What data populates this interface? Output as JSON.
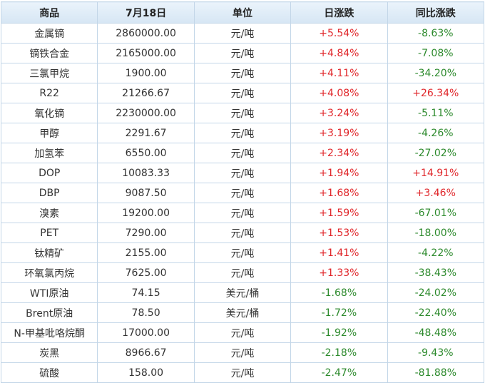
{
  "table": {
    "header": [
      "商品",
      "7月18日",
      "单位",
      "日涨跌",
      "同比涨跌"
    ],
    "rows": [
      [
        "金属镝",
        "2860000.00",
        "元/吨",
        "+5.54%",
        "-8.63%"
      ],
      [
        "镝铁合金",
        "2165000.00",
        "元/吨",
        "+4.84%",
        "-7.08%"
      ],
      [
        "三氯甲烷",
        "1900.00",
        "元/吨",
        "+4.11%",
        "-34.20%"
      ],
      [
        "R22",
        "21266.67",
        "元/吨",
        "+4.08%",
        "+26.34%"
      ],
      [
        "氧化镝",
        "2230000.00",
        "元/吨",
        "+3.24%",
        "-5.11%"
      ],
      [
        "甲醇",
        "2291.67",
        "元/吨",
        "+3.19%",
        "-4.26%"
      ],
      [
        "加氢苯",
        "6550.00",
        "元/吨",
        "+2.34%",
        "-27.02%"
      ],
      [
        "DOP",
        "10083.33",
        "元/吨",
        "+1.94%",
        "+14.91%"
      ],
      [
        "DBP",
        "9087.50",
        "元/吨",
        "+1.68%",
        "+3.46%"
      ],
      [
        "溴素",
        "19200.00",
        "元/吨",
        "+1.59%",
        "-67.01%"
      ],
      [
        "PET",
        "7290.00",
        "元/吨",
        "+1.53%",
        "-18.00%"
      ],
      [
        "钛精矿",
        "2155.00",
        "元/吨",
        "+1.41%",
        "-4.22%"
      ],
      [
        "环氧氯丙烷",
        "7625.00",
        "元/吨",
        "+1.33%",
        "-38.43%"
      ],
      [
        "WTI原油",
        "74.15",
        "美元/桶",
        "-1.68%",
        "-24.02%"
      ],
      [
        "Brent原油",
        "78.50",
        "美元/桶",
        "-1.72%",
        "-22.40%"
      ],
      [
        "N-甲基吡咯烷酮",
        "17000.00",
        "元/吨",
        "-1.92%",
        "-48.48%"
      ],
      [
        "炭黑",
        "8966.67",
        "元/吨",
        "-2.18%",
        "-9.43%"
      ],
      [
        "硫酸",
        "158.00",
        "元/吨",
        "-2.47%",
        "-81.88%"
      ]
    ]
  }
}
